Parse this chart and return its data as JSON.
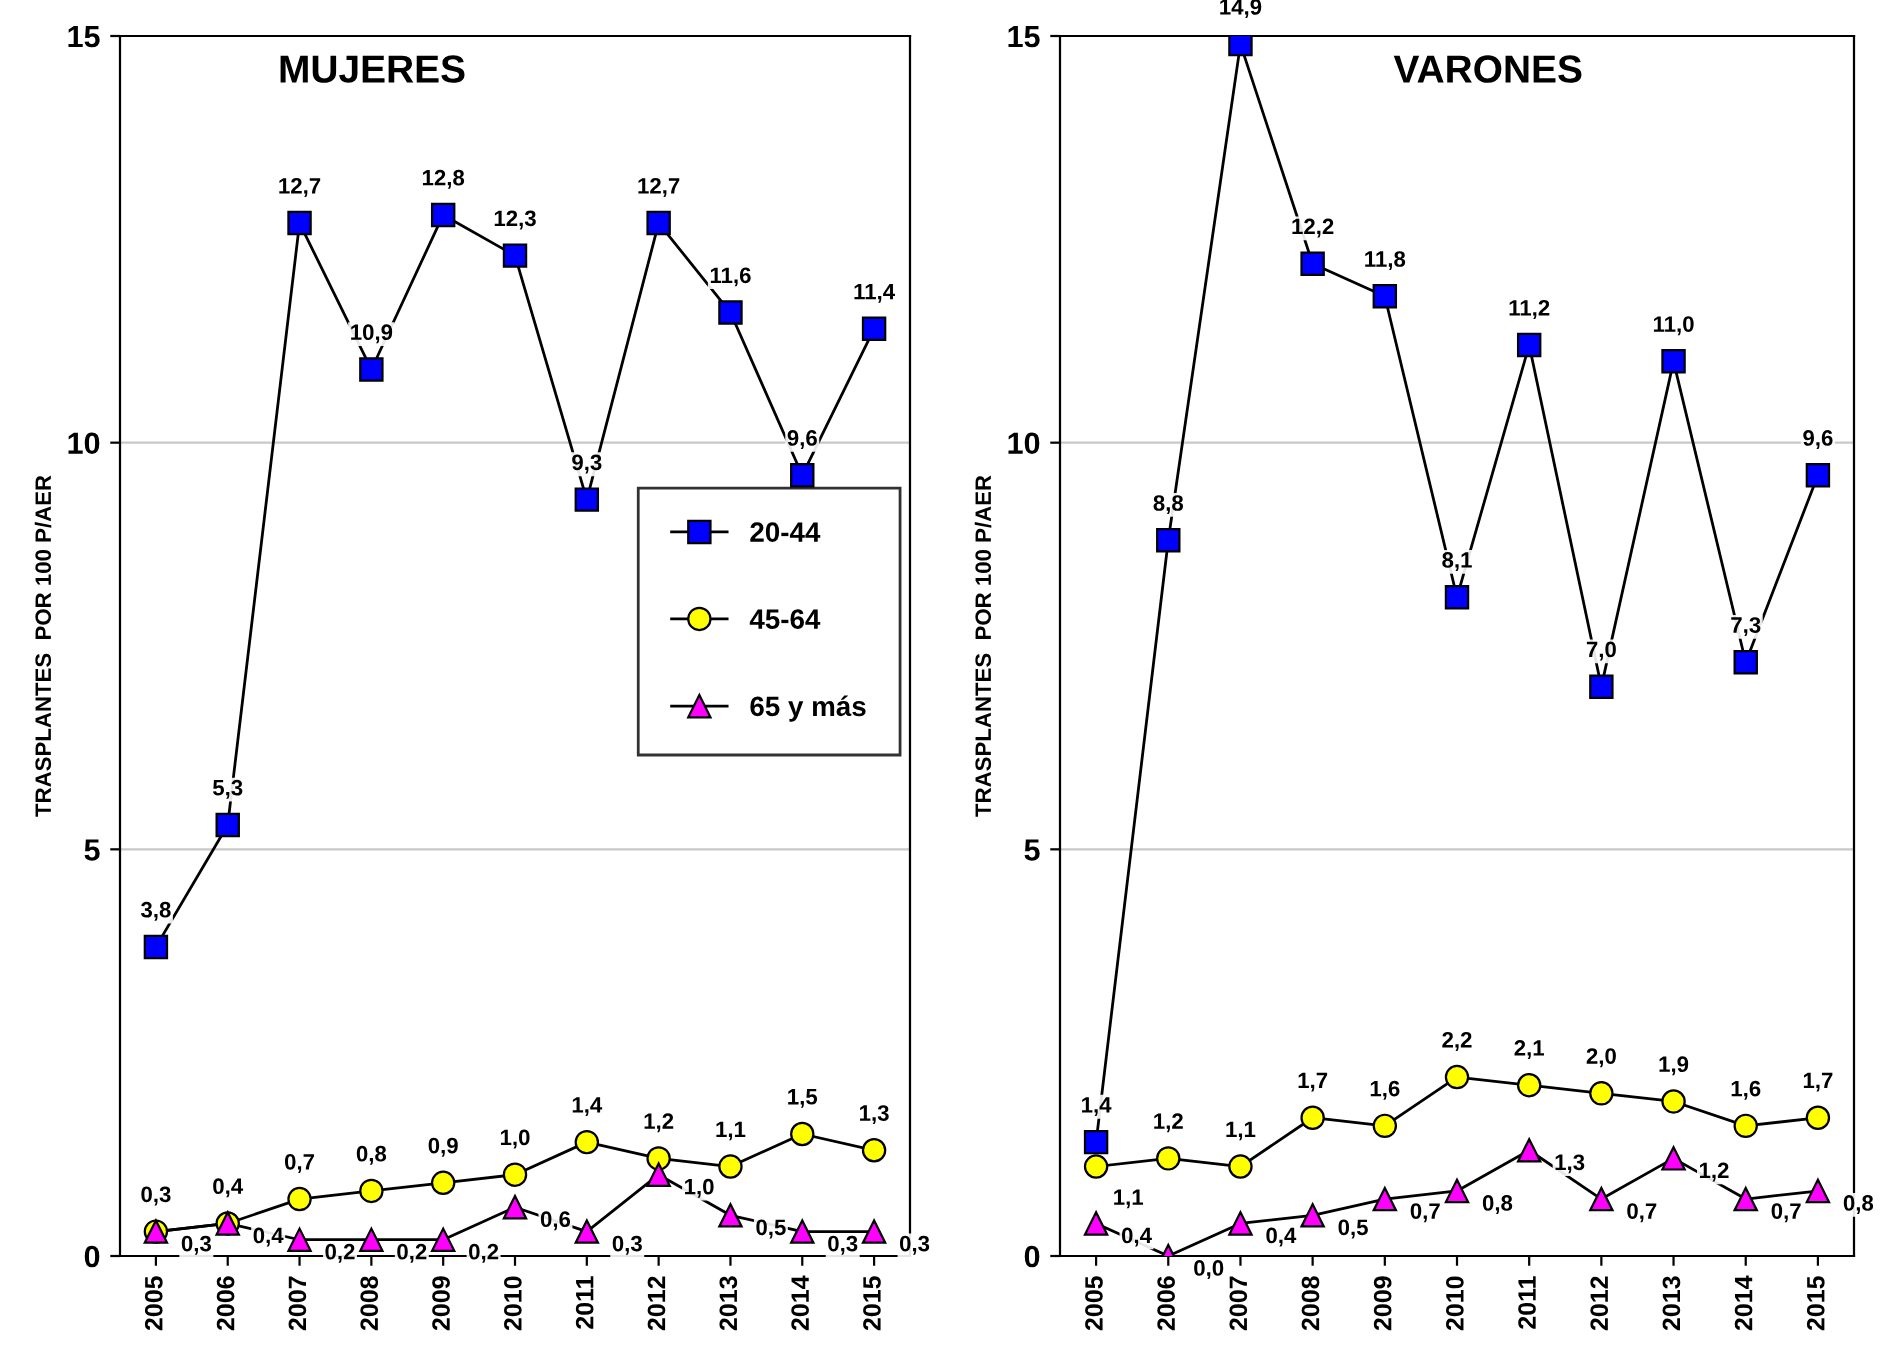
{
  "chart_data": [
    {
      "type": "line",
      "title": "MUJERES",
      "ylabel": "TRASPLANTES  POR 100 P/AER",
      "categories": [
        "2005",
        "2006",
        "2007",
        "2008",
        "2009",
        "2010",
        "2011",
        "2012",
        "2013",
        "2014",
        "2015"
      ],
      "ylim": [
        0,
        15
      ],
      "yticks": [
        0,
        5,
        10,
        15
      ],
      "grid": "y",
      "legend": "right",
      "series": [
        {
          "name": "20-44",
          "color": "#0000ff",
          "marker": "square",
          "values": [
            3.8,
            5.3,
            12.7,
            10.9,
            12.8,
            12.3,
            9.3,
            12.7,
            11.6,
            9.6,
            11.4
          ],
          "value_labels": [
            "3,8",
            "5,3",
            "12,7",
            "10,9",
            "12,8",
            "12,3",
            "9,3",
            "12,7",
            "11,6",
            "9,6",
            "11,4"
          ]
        },
        {
          "name": "45-64",
          "color": "#ffff00",
          "marker": "circle",
          "values": [
            0.3,
            0.4,
            0.7,
            0.8,
            0.9,
            1.0,
            1.4,
            1.2,
            1.1,
            1.5,
            1.3
          ],
          "value_labels": [
            "0,3",
            "0,4",
            "0,7",
            "0,8",
            "0,9",
            "1,0",
            "1,4",
            "1,2",
            "1,1",
            "1,5",
            "1,3"
          ]
        },
        {
          "name": "65 y más",
          "color": "#ff00ff",
          "marker": "triangle",
          "values": [
            0.3,
            0.4,
            0.2,
            0.2,
            0.2,
            0.6,
            0.3,
            1.0,
            0.5,
            0.3,
            0.3
          ],
          "value_labels": [
            "0,3",
            "0,4",
            "0,2",
            "0,2",
            "0,2",
            "0,6",
            "0,3",
            "1,0",
            "0,5",
            "0,3",
            "0,3"
          ]
        }
      ]
    },
    {
      "type": "line",
      "title": "VARONES",
      "ylabel": "TRASPLANTES  POR 100 P/AER",
      "categories": [
        "2005",
        "2006",
        "2007",
        "2008",
        "2009",
        "2010",
        "2011",
        "2012",
        "2013",
        "2014",
        "2015"
      ],
      "ylim": [
        0,
        15
      ],
      "yticks": [
        0,
        5,
        10,
        15
      ],
      "grid": "y",
      "series": [
        {
          "color": "#0000ff",
          "marker": "square",
          "values": [
            1.4,
            8.8,
            14.9,
            12.2,
            11.8,
            8.1,
            11.2,
            7.0,
            11.0,
            7.3,
            9.6
          ],
          "value_labels": [
            "1,4",
            "8,8",
            "14,9",
            "12,2",
            "11,8",
            "8,1",
            "11,2",
            "7,0",
            "11,0",
            "7,3",
            "9,6"
          ]
        },
        {
          "color": "#ffff00",
          "marker": "circle",
          "values": [
            1.1,
            1.2,
            1.1,
            1.7,
            1.6,
            2.2,
            2.1,
            2.0,
            1.9,
            1.6,
            1.7
          ],
          "value_labels": [
            "1,1",
            "1,2",
            "1,1",
            "1,7",
            "1,6",
            "2,2",
            "2,1",
            "2,0",
            "1,9",
            "1,6",
            "1,7"
          ]
        },
        {
          "color": "#ff00ff",
          "marker": "triangle",
          "values": [
            0.4,
            0.0,
            0.4,
            0.5,
            0.7,
            0.8,
            1.3,
            0.7,
            1.2,
            0.7,
            0.8
          ],
          "value_labels": [
            "0,4",
            "0,0",
            "0,4",
            "0,5",
            "0,7",
            "0,8",
            "1,3",
            "0,7",
            "1,2",
            "0,7",
            "0,8"
          ]
        }
      ]
    }
  ]
}
